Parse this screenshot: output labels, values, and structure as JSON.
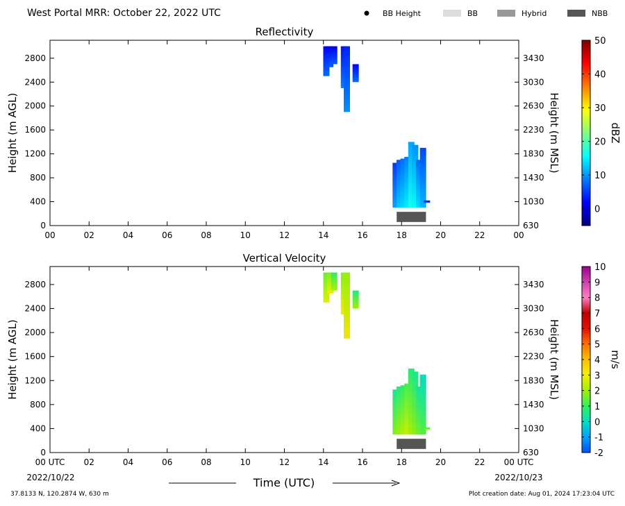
{
  "header": {
    "title": "West Portal MRR:  October 22, 2022 UTC",
    "legend": [
      {
        "label": "BB Height",
        "symbol": "dot",
        "color": "#000000"
      },
      {
        "label": "BB",
        "symbol": "swatch",
        "color": "#dcdcdc"
      },
      {
        "label": "Hybrid",
        "symbol": "swatch",
        "color": "#999999"
      },
      {
        "label": "NBB",
        "symbol": "swatch",
        "color": "#555555"
      }
    ]
  },
  "footer": {
    "location": "37.8133 N, 120.2874 W, 630 m",
    "creation": "Plot creation date: Aug 01, 2024 17:23:04 UTC",
    "time_axis_label": "Time (UTC)",
    "start_label": "00 UTC",
    "start_date": "2022/10/22",
    "end_label": "00 UTC",
    "end_date": "2022/10/23"
  },
  "chart_data": [
    {
      "type": "heatmap",
      "title": "Reflectivity",
      "xlabel": "",
      "ylabel": "Height (m AGL)",
      "ylabel_right": "Height (m MSL)",
      "colorbar_label": "dBZ",
      "x_ticks": [
        "00",
        "02",
        "04",
        "06",
        "08",
        "10",
        "12",
        "14",
        "16",
        "18",
        "20",
        "22",
        "00"
      ],
      "xlim_hours": [
        0,
        24
      ],
      "ylim": [
        0,
        3100
      ],
      "y_ticks": [
        0,
        400,
        800,
        1200,
        1600,
        2000,
        2400,
        2800
      ],
      "y_ticks_right": [
        630,
        1030,
        1430,
        1830,
        2230,
        2630,
        3030,
        3430
      ],
      "colorbar": {
        "range": [
          -5,
          50
        ],
        "ticks": [
          0,
          10,
          20,
          30,
          40,
          50
        ],
        "colors": [
          "#00007f",
          "#0000ff",
          "#0080ff",
          "#00ffff",
          "#80ff80",
          "#ffff00",
          "#ff8000",
          "#ff0000",
          "#7f0000"
        ]
      },
      "columns": [
        {
          "t": 14.15,
          "bottom": 2500,
          "top": 3000,
          "value": 5
        },
        {
          "t": 14.35,
          "bottom": 2650,
          "top": 3000,
          "value": 4
        },
        {
          "t": 14.55,
          "bottom": 2700,
          "top": 3000,
          "value": 4
        },
        {
          "t": 15.05,
          "bottom": 2300,
          "top": 3000,
          "value": 6
        },
        {
          "t": 15.2,
          "bottom": 1900,
          "top": 3000,
          "value": 7
        },
        {
          "t": 15.65,
          "bottom": 2400,
          "top": 2700,
          "value": 5
        },
        {
          "t": 17.7,
          "bottom": 300,
          "top": 1050,
          "value": 8
        },
        {
          "t": 17.9,
          "bottom": 300,
          "top": 1100,
          "value": 10
        },
        {
          "t": 18.1,
          "bottom": 300,
          "top": 1120,
          "value": 11
        },
        {
          "t": 18.3,
          "bottom": 300,
          "top": 1150,
          "value": 12
        },
        {
          "t": 18.5,
          "bottom": 300,
          "top": 1400,
          "value": 14
        },
        {
          "t": 18.7,
          "bottom": 300,
          "top": 1350,
          "value": 13
        },
        {
          "t": 18.9,
          "bottom": 300,
          "top": 1100,
          "value": 11
        },
        {
          "t": 19.1,
          "bottom": 300,
          "top": 1300,
          "value": 9
        },
        {
          "t": 19.3,
          "bottom": 380,
          "top": 420,
          "value": 5
        }
      ],
      "bright_band": {
        "type": "NBB",
        "start_hour": 17.75,
        "end_hour": 19.25,
        "bottom": 60,
        "top": 230
      }
    },
    {
      "type": "heatmap",
      "title": "Vertical Velocity",
      "xlabel": "Time (UTC)",
      "ylabel": "Height (m AGL)",
      "ylabel_right": "Height (m MSL)",
      "colorbar_label": "m/s",
      "x_ticks": [
        "00 UTC",
        "02",
        "04",
        "06",
        "08",
        "10",
        "12",
        "14",
        "16",
        "18",
        "20",
        "22",
        "00 UTC"
      ],
      "xlim_hours": [
        0,
        24
      ],
      "ylim": [
        0,
        3100
      ],
      "y_ticks": [
        0,
        400,
        800,
        1200,
        1600,
        2000,
        2400,
        2800
      ],
      "y_ticks_right": [
        630,
        1030,
        1430,
        1830,
        2230,
        2630,
        3030,
        3430
      ],
      "colorbar": {
        "range": [
          -2,
          10
        ],
        "ticks": [
          -2,
          -1,
          0,
          1,
          2,
          3,
          4,
          5,
          6,
          7,
          8,
          9,
          10
        ],
        "colors": [
          "#0050ff",
          "#00a0ff",
          "#00e0c0",
          "#30f060",
          "#a0f000",
          "#f0f000",
          "#ffc000",
          "#ff7000",
          "#e01000",
          "#c00000",
          "#ff80c0",
          "#d040b0",
          "#a00090"
        ]
      },
      "columns": [
        {
          "t": 14.15,
          "bottom": 2500,
          "top": 3000,
          "value": 2.2
        },
        {
          "t": 14.35,
          "bottom": 2650,
          "top": 3000,
          "value": 2.4
        },
        {
          "t": 14.55,
          "bottom": 2700,
          "top": 3000,
          "value": 1.6
        },
        {
          "t": 15.05,
          "bottom": 2300,
          "top": 3000,
          "value": 2.5
        },
        {
          "t": 15.2,
          "bottom": 1900,
          "top": 3000,
          "value": 2.6
        },
        {
          "t": 15.65,
          "bottom": 2400,
          "top": 2700,
          "value": 1.4
        },
        {
          "t": 17.7,
          "bottom": 300,
          "top": 1050,
          "value": 1.2
        },
        {
          "t": 17.9,
          "bottom": 300,
          "top": 1100,
          "value": 1.4
        },
        {
          "t": 18.1,
          "bottom": 300,
          "top": 1120,
          "value": 1.6
        },
        {
          "t": 18.3,
          "bottom": 300,
          "top": 1150,
          "value": 1.9
        },
        {
          "t": 18.5,
          "bottom": 300,
          "top": 1400,
          "value": 1.5
        },
        {
          "t": 18.7,
          "bottom": 300,
          "top": 1350,
          "value": 1.2
        },
        {
          "t": 18.9,
          "bottom": 300,
          "top": 1100,
          "value": 1.0
        },
        {
          "t": 19.1,
          "bottom": 300,
          "top": 1300,
          "value": 0.7
        },
        {
          "t": 19.3,
          "bottom": 380,
          "top": 420,
          "value": 1.5
        }
      ],
      "bright_band": {
        "type": "NBB",
        "start_hour": 17.75,
        "end_hour": 19.25,
        "bottom": 60,
        "top": 230
      }
    }
  ]
}
